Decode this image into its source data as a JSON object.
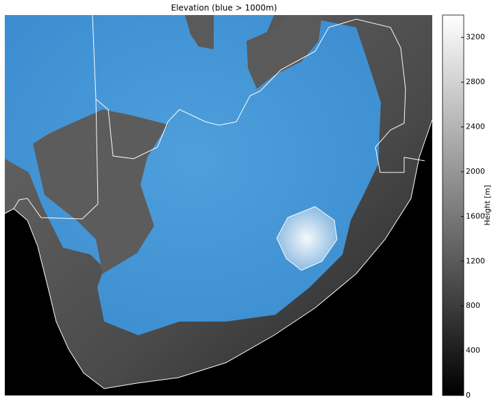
{
  "chart_data": {
    "type": "map",
    "title": "Elevation (blue > 1000m)",
    "colorbar": {
      "label": "Height [m]",
      "lim": [
        0,
        3400
      ],
      "ticks": [
        0,
        400,
        800,
        1200,
        1600,
        2000,
        2400,
        2800,
        3200
      ]
    }
  }
}
